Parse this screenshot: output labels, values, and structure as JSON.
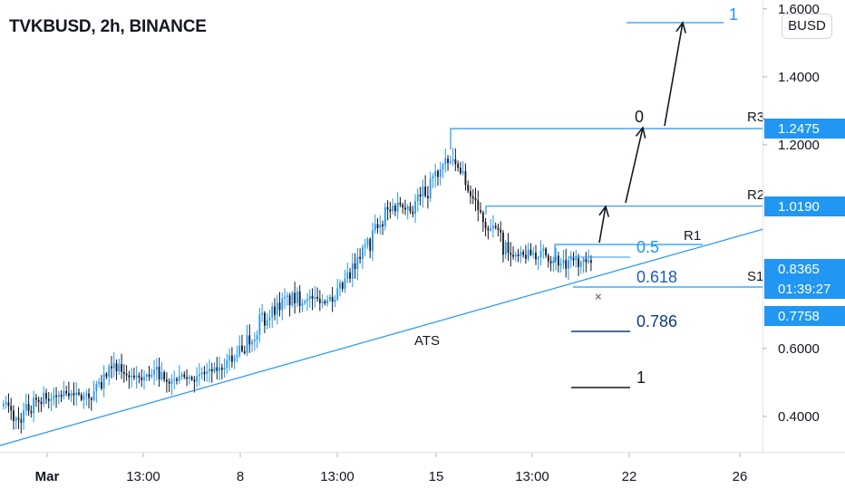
{
  "header": {
    "title": "TVKBUSD, 2h, BINANCE",
    "currency": "BUSD"
  },
  "colors": {
    "up": "#2196f3",
    "down": "#131722",
    "line": "#2196f3",
    "fib": "#2962ff",
    "axis_text": "#131722",
    "badge_bg": "#2196f3"
  },
  "chart_data": {
    "type": "candlestick",
    "title": "TVKBUSD, 2h, BINANCE",
    "xlabel": "",
    "ylabel": "",
    "ylim": [
      0.28,
      1.62
    ],
    "x_ticks": [
      "Mar",
      "13:00",
      "8",
      "13:00",
      "15",
      "13:00",
      "22",
      "26"
    ],
    "y_ticks": [
      "1.6000",
      "1.4000",
      "1.2000",
      "0.6000",
      "0.4000"
    ],
    "price_levels": [
      {
        "label": "R3",
        "value": "1.2475",
        "price": 1.2475
      },
      {
        "label": "R2",
        "value": "1.0190",
        "price": 1.019
      },
      {
        "label": "",
        "value": "0.8365",
        "price": 0.8365,
        "timer": "01:39:27"
      },
      {
        "label": "",
        "value": "0.7758",
        "price": 0.7758
      }
    ],
    "annotations": {
      "fib_levels": [
        {
          "label": "1",
          "price": 1.553
        },
        {
          "label": "0",
          "price": 1.2475
        },
        {
          "label": "0.5",
          "price": 0.888
        },
        {
          "label": "0.618",
          "price": 0.8
        },
        {
          "label": "0.786",
          "price": 0.66
        },
        {
          "label": "1",
          "price": 0.46
        }
      ],
      "pivot_labels": [
        "R3",
        "R2",
        "R1",
        "S1"
      ],
      "trendline_label": "ATS"
    },
    "trend": [
      [
        0.43,
        0.46
      ],
      [
        0.36,
        0.41
      ],
      [
        0.4,
        0.45
      ],
      [
        0.44,
        0.47
      ],
      [
        0.43,
        0.48
      ],
      [
        0.46,
        0.48
      ],
      [
        0.44,
        0.47
      ],
      [
        0.45,
        0.48
      ],
      [
        0.48,
        0.55
      ],
      [
        0.52,
        0.56
      ],
      [
        0.51,
        0.52
      ],
      [
        0.5,
        0.53
      ],
      [
        0.51,
        0.55
      ],
      [
        0.5,
        0.52
      ],
      [
        0.51,
        0.52
      ],
      [
        0.5,
        0.52
      ],
      [
        0.52,
        0.54
      ],
      [
        0.53,
        0.55
      ],
      [
        0.55,
        0.6
      ],
      [
        0.58,
        0.66
      ],
      [
        0.64,
        0.7
      ],
      [
        0.69,
        0.73
      ],
      [
        0.72,
        0.76
      ],
      [
        0.72,
        0.77
      ],
      [
        0.74,
        0.76
      ],
      [
        0.73,
        0.75
      ],
      [
        0.74,
        0.77
      ],
      [
        0.76,
        0.84
      ],
      [
        0.83,
        0.9
      ],
      [
        0.89,
        0.97
      ],
      [
        0.94,
        1.05
      ],
      [
        1.02,
        1.04
      ],
      [
        0.98,
        1.05
      ],
      [
        1.03,
        1.09
      ],
      [
        1.08,
        1.16
      ],
      [
        1.14,
        1.16
      ],
      [
        1.08,
        1.14
      ],
      [
        0.97,
        1.07
      ],
      [
        0.94,
        0.98
      ],
      [
        0.88,
        0.95
      ],
      [
        0.84,
        0.88
      ],
      [
        0.86,
        0.89
      ],
      [
        0.86,
        0.9
      ],
      [
        0.85,
        0.89
      ],
      [
        0.82,
        0.86
      ],
      [
        0.84,
        0.87
      ],
      [
        0.83,
        0.86
      ]
    ],
    "candle_count": 235
  }
}
